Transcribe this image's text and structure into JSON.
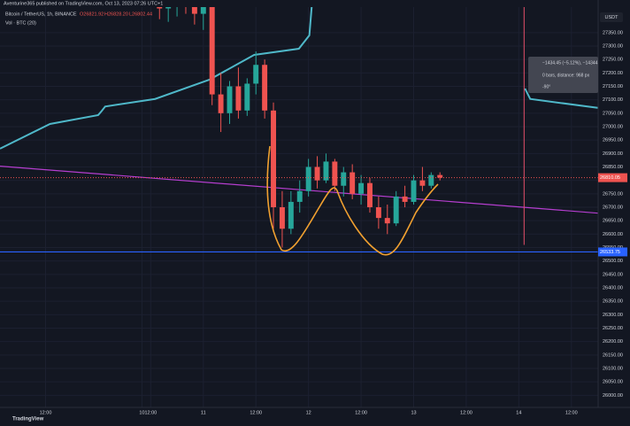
{
  "header": "Aventurine365 published on TradingView.com, Oct 13, 2023 07:26 UTC+1",
  "footer": "TradingView",
  "chart_data": {
    "type": "candlestick",
    "title": "Bitcoin / TetherUS, 1h, BINANCE",
    "ohlc_legend": [
      "O26821.92",
      "H26828.20",
      "L26802.44"
    ],
    "volume_label": "Vol · BTC (20)",
    "y_axis_label": "USDT",
    "x": [
      14,
      16,
      18,
      20,
      22,
      24,
      26,
      28,
      30,
      32,
      34,
      36,
      38,
      40,
      42,
      44,
      46,
      48,
      50,
      52,
      54,
      56,
      58,
      60,
      62,
      64,
      66,
      68,
      70,
      72,
      74,
      76,
      78
    ],
    "open": [
      27470,
      27440,
      27460,
      27480,
      27450,
      27420,
      27470,
      27120,
      27050,
      27150,
      27060,
      27160,
      27230,
      27060,
      26700,
      26620,
      26720,
      26760,
      26850,
      26800,
      26870,
      26780,
      26830,
      26750,
      26790,
      26700,
      26660,
      26640,
      26740,
      26720,
      26800,
      26780,
      26820
    ],
    "high": [
      27520,
      27500,
      27530,
      27540,
      27510,
      27490,
      27500,
      27200,
      27170,
      27220,
      27180,
      27280,
      27250,
      27090,
      26760,
      26760,
      26800,
      26880,
      26890,
      26900,
      26880,
      26850,
      26860,
      26820,
      26810,
      26740,
      26710,
      26760,
      26780,
      26820,
      26850,
      26830,
      26830
    ],
    "low": [
      27400,
      27390,
      27410,
      27420,
      27380,
      27360,
      27080,
      26980,
      27010,
      27030,
      27040,
      27120,
      27030,
      26620,
      26550,
      26600,
      26680,
      26740,
      26770,
      26790,
      26760,
      26740,
      26730,
      26710,
      26680,
      26620,
      26600,
      26630,
      26700,
      26710,
      26760,
      26770,
      26800
    ],
    "close": [
      27440,
      27460,
      27480,
      27450,
      27420,
      27470,
      27120,
      27050,
      27150,
      27060,
      27160,
      27230,
      27060,
      26700,
      26620,
      26720,
      26760,
      26850,
      26800,
      26870,
      26780,
      26830,
      26750,
      26790,
      26700,
      26660,
      26640,
      26740,
      26720,
      26800,
      26780,
      26820,
      26810
    ],
    "up_color": "#26a69a",
    "down_color": "#ef5350",
    "xlim": [
      -22.4,
      114.1
    ],
    "xticks": [
      {
        "value": -12,
        "label": "12:00"
      },
      10,
      {
        "value": 12,
        "label": "12:00"
      },
      {
        "value": 24,
        "label": "11"
      },
      {
        "value": 36,
        "label": "12:00"
      },
      {
        "value": 48,
        "label": "12"
      },
      {
        "value": 60,
        "label": "12:00"
      },
      {
        "value": 72,
        "label": "13"
      },
      {
        "value": 84,
        "label": "12:00"
      },
      {
        "value": 96,
        "label": "14"
      },
      {
        "value": 108,
        "label": "12:00"
      }
    ],
    "ylim": [
      25955,
      27445
    ],
    "yticks": [
      {
        "value": 26000,
        "label": "26000.00"
      },
      {
        "value": 26050,
        "label": "26050.00"
      },
      {
        "value": 26100,
        "label": "26100.00"
      },
      {
        "value": 26150,
        "label": "26150.00"
      },
      {
        "value": 26200,
        "label": "26200.00"
      },
      {
        "value": 26250,
        "label": "26250.00"
      },
      {
        "value": 26300,
        "label": "26300.00"
      },
      {
        "value": 26350,
        "label": "26350.00"
      },
      {
        "value": 26400,
        "label": "26400.00"
      },
      {
        "value": 26450,
        "label": "26450.00"
      },
      {
        "value": 26500,
        "label": "26500.00"
      },
      {
        "value": 26550,
        "label": "26550.00"
      },
      {
        "value": 26600,
        "label": "26600.00"
      },
      {
        "value": 26650,
        "label": "26650.00"
      },
      {
        "value": 26700,
        "label": "26700.00"
      },
      {
        "value": 26750,
        "label": "26750.00"
      },
      {
        "value": 26800,
        "label": "26800.00"
      },
      {
        "value": 26850,
        "label": "26850.00"
      },
      {
        "value": 26900,
        "label": "26900.00"
      },
      {
        "value": 26950,
        "label": "26950.00"
      },
      {
        "value": 27000,
        "label": "27000.00"
      },
      {
        "value": 27050,
        "label": "27050.00"
      },
      {
        "value": 27100,
        "label": "27100.00"
      },
      {
        "value": 27150,
        "label": "27150.00"
      },
      {
        "value": 27200,
        "label": "27200.00"
      },
      {
        "value": 27250,
        "label": "27250.00"
      },
      {
        "value": 27300,
        "label": "27300.00"
      },
      {
        "value": 27350,
        "label": "27350.00"
      }
    ],
    "last_price": 26810.05,
    "last_price_color": "#ef5350",
    "horizontal_line": {
      "value": 26533.75,
      "color": "#2962ff"
    },
    "band_line": {
      "color": "#4fb8c9",
      "x": [
        -22.4,
        -11,
        0,
        0.8,
        1.6,
        13,
        25.4,
        35.6,
        45.8,
        48.2,
        48.9,
        70,
        97.4,
        98.6,
        114
      ],
      "values": [
        26918,
        27010,
        27043,
        27058,
        27075,
        27103,
        27175,
        27267,
        27290,
        27340,
        27480,
        null,
        27142,
        27103,
        27070
      ]
    },
    "trend_line": {
      "color": "#b53ecf",
      "x": [
        -22.4,
        114.1
      ],
      "values": [
        26853,
        26678
      ]
    },
    "measure_line": {
      "color": "#e5506b",
      "x": 97.2,
      "values": [
        27445,
        26560
      ]
    },
    "measure_tooltip": [
      "−1434.45 (−5.12%), −14344",
      "0 bars, distance: 968 px",
      "-90°"
    ]
  }
}
